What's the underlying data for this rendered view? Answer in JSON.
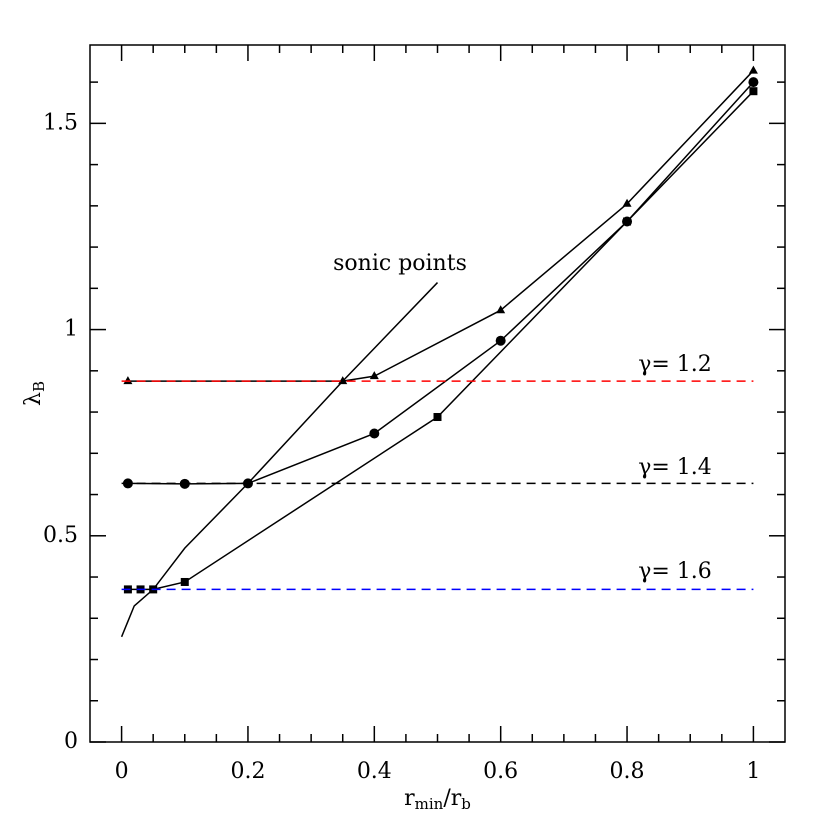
{
  "chart_data": {
    "type": "line",
    "xlabel": [
      "r",
      "min",
      "/r",
      "b"
    ],
    "ylabel": [
      "λ",
      "B"
    ],
    "xlim": [
      -0.05,
      1.05
    ],
    "ylim": [
      0,
      1.69
    ],
    "xticks": [
      {
        "value": 0,
        "label": "0"
      },
      0.2,
      0.4,
      0.6,
      0.8,
      1
    ],
    "yticks": [
      0,
      0.5,
      1,
      1.5
    ],
    "x_minor_ticks": [
      0.05,
      0.1,
      0.15,
      0.25,
      0.3,
      0.35,
      0.45,
      0.5,
      0.55,
      0.65,
      0.7,
      0.75,
      0.85,
      0.9,
      0.95
    ],
    "y_minor_ticks": [
      0.1,
      0.2,
      0.3,
      0.4,
      0.6,
      0.7,
      0.8,
      0.9,
      1.1,
      1.2,
      1.3,
      1.4,
      1.6
    ],
    "series": [
      {
        "color": "#000000",
        "marker": "triangle",
        "x": [
          0.01,
          0.35,
          0.4,
          0.6,
          0.8,
          1.0
        ],
        "values": [
          0.875,
          0.875,
          0.887,
          1.047,
          1.305,
          1.628
        ]
      },
      {
        "color": "#000000",
        "marker": "circle",
        "x": [
          0.01,
          0.1,
          0.2,
          0.4,
          0.6,
          0.8,
          1.0
        ],
        "values": [
          0.627,
          0.626,
          0.627,
          0.748,
          0.973,
          1.262,
          1.6
        ]
      },
      {
        "color": "#000000",
        "marker": "square",
        "x": [
          0.01,
          0.03,
          0.05,
          0.1,
          0.5,
          0.8,
          1.0
        ],
        "values": [
          0.37,
          0.37,
          0.37,
          0.388,
          0.788,
          1.262,
          1.578
        ]
      },
      {
        "color": "#000000",
        "marker": "none",
        "x": [
          0,
          0.02,
          0.05,
          0.1,
          0.2,
          0.35,
          0.5
        ],
        "values": [
          0.255,
          0.33,
          0.37,
          0.47,
          0.627,
          0.875,
          1.114
        ]
      },
      {
        "color": "#ff0000",
        "marker": "none",
        "dashed": true,
        "x": [
          0,
          1
        ],
        "values": [
          0.875,
          0.875
        ]
      },
      {
        "color": "#000000",
        "marker": "none",
        "dashed": true,
        "x": [
          0,
          1
        ],
        "values": [
          0.627,
          0.627
        ]
      },
      {
        "color": "#0000ff",
        "marker": "none",
        "dashed": true,
        "x": [
          0,
          1
        ],
        "values": [
          0.37,
          0.37
        ]
      }
    ],
    "annotations": [
      "sonic points",
      "γ= 1.2",
      "γ= 1.4",
      "γ= 1.6"
    ]
  }
}
